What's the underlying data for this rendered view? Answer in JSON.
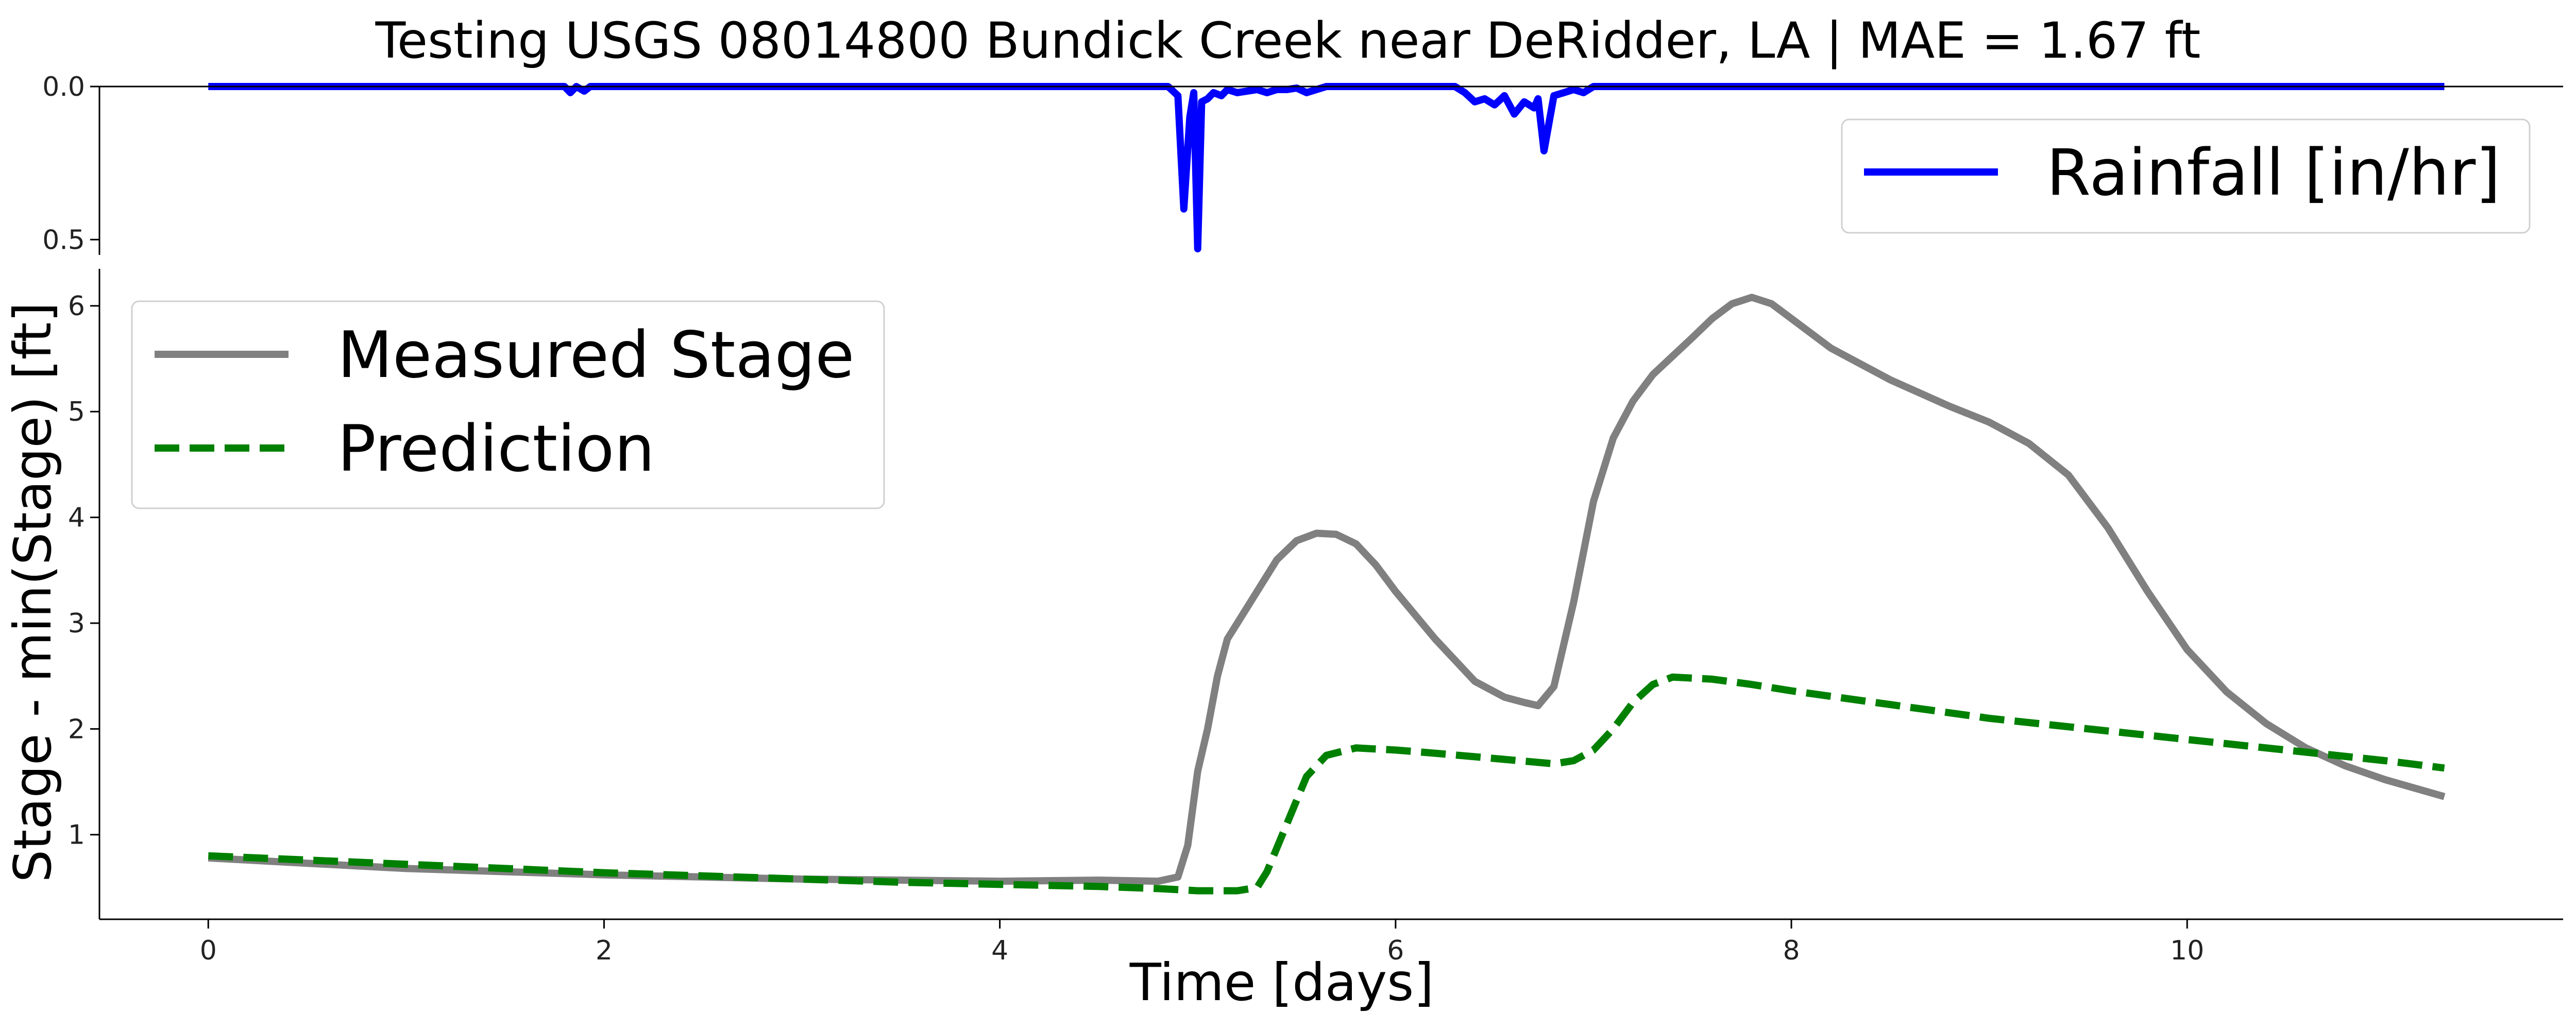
{
  "chart_data": {
    "title": "Testing USGS 08014800 Bundick Creek near DeRidder, LA | MAE = 1.67 ft",
    "rain_panel": {
      "type": "line",
      "ylim": [
        0.55,
        0.0
      ],
      "yticks": [
        0.0,
        0.5
      ],
      "ytick_labels": [
        "0.0",
        "0.5"
      ],
      "inverted_y": true,
      "legend_position": "upper-right",
      "series": [
        {
          "name": "Rainfall [in/hr]",
          "color": "#0000ff",
          "style": "solid",
          "x": [
            0,
            1.8,
            1.83,
            1.86,
            1.9,
            1.93,
            2.0,
            4.85,
            4.9,
            4.93,
            4.96,
            4.98,
            5.0,
            5.02,
            5.05,
            5.08,
            5.12,
            5.15,
            5.2,
            5.25,
            5.3,
            5.35,
            5.4,
            5.45,
            5.5,
            5.55,
            5.6,
            5.65,
            5.7,
            6.3,
            6.35,
            6.4,
            6.45,
            6.5,
            6.55,
            6.6,
            6.65,
            6.7,
            6.72,
            6.75,
            6.8,
            6.85,
            6.9,
            6.95,
            7.0,
            11.3
          ],
          "values": [
            0,
            0,
            0.02,
            0,
            0.015,
            0,
            0,
            0,
            0.03,
            0.4,
            0.1,
            0.02,
            0.53,
            0.05,
            0.04,
            0.02,
            0.03,
            0.01,
            0.02,
            0.015,
            0.01,
            0.02,
            0.01,
            0.01,
            0.005,
            0.02,
            0.01,
            0.0,
            0,
            0,
            0.02,
            0.05,
            0.04,
            0.06,
            0.03,
            0.09,
            0.05,
            0.07,
            0.04,
            0.21,
            0.03,
            0.02,
            0.01,
            0.02,
            0,
            0
          ]
        }
      ]
    },
    "stage_panel": {
      "type": "line",
      "xlabel": "Time [days]",
      "ylabel": "Stage - min(Stage) [ft]",
      "xlim": [
        -0.55,
        11.9
      ],
      "ylim": [
        0.2,
        6.35
      ],
      "xticks": [
        0,
        2,
        4,
        6,
        8,
        10
      ],
      "xtick_labels": [
        "0",
        "2",
        "4",
        "6",
        "8",
        "10"
      ],
      "yticks": [
        1,
        2,
        3,
        4,
        5,
        6
      ],
      "ytick_labels": [
        "1",
        "2",
        "3",
        "4",
        "5",
        "6"
      ],
      "legend_position": "upper-left",
      "series": [
        {
          "name": "Measured Stage",
          "color": "#808080",
          "style": "solid",
          "x": [
            0,
            0.5,
            1,
            1.5,
            2,
            2.5,
            3,
            3.5,
            4,
            4.5,
            4.8,
            4.9,
            4.95,
            5.0,
            5.05,
            5.1,
            5.15,
            5.2,
            5.3,
            5.4,
            5.5,
            5.6,
            5.7,
            5.8,
            5.9,
            6.0,
            6.2,
            6.4,
            6.55,
            6.65,
            6.72,
            6.8,
            6.9,
            7.0,
            7.1,
            7.2,
            7.3,
            7.5,
            7.6,
            7.7,
            7.8,
            7.9,
            8.0,
            8.2,
            8.5,
            8.8,
            9.0,
            9.2,
            9.4,
            9.6,
            9.8,
            10.0,
            10.2,
            10.4,
            10.6,
            10.8,
            11.0,
            11.3
          ],
          "values": [
            0.78,
            0.73,
            0.68,
            0.65,
            0.62,
            0.6,
            0.58,
            0.57,
            0.56,
            0.57,
            0.56,
            0.6,
            0.9,
            1.6,
            2.0,
            2.5,
            2.85,
            3.0,
            3.3,
            3.6,
            3.78,
            3.85,
            3.84,
            3.75,
            3.55,
            3.3,
            2.85,
            2.45,
            2.3,
            2.25,
            2.22,
            2.4,
            3.2,
            4.15,
            4.75,
            5.1,
            5.35,
            5.7,
            5.88,
            6.02,
            6.08,
            6.02,
            5.88,
            5.6,
            5.3,
            5.05,
            4.9,
            4.7,
            4.4,
            3.9,
            3.3,
            2.75,
            2.35,
            2.05,
            1.82,
            1.65,
            1.52,
            1.36
          ]
        },
        {
          "name": "Prediction",
          "color": "#008000",
          "style": "dashed",
          "x": [
            0,
            0.5,
            1,
            1.5,
            2,
            2.5,
            3,
            3.5,
            4,
            4.5,
            4.8,
            5.0,
            5.2,
            5.3,
            5.35,
            5.45,
            5.55,
            5.65,
            5.8,
            6.0,
            6.2,
            6.5,
            6.8,
            6.9,
            7.0,
            7.1,
            7.2,
            7.3,
            7.4,
            7.6,
            7.8,
            8.0,
            8.5,
            9.0,
            9.5,
            10.0,
            10.5,
            11.0,
            11.3
          ],
          "values": [
            0.8,
            0.76,
            0.72,
            0.68,
            0.64,
            0.61,
            0.58,
            0.55,
            0.53,
            0.51,
            0.49,
            0.47,
            0.47,
            0.5,
            0.65,
            1.1,
            1.55,
            1.75,
            1.82,
            1.8,
            1.77,
            1.72,
            1.67,
            1.7,
            1.8,
            2.0,
            2.25,
            2.42,
            2.49,
            2.47,
            2.42,
            2.36,
            2.23,
            2.1,
            2.0,
            1.9,
            1.8,
            1.7,
            1.63
          ]
        }
      ]
    }
  }
}
